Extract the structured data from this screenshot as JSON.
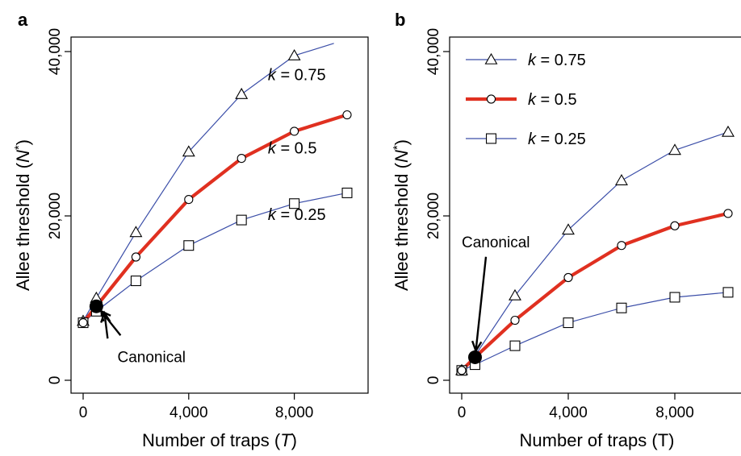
{
  "chart_data": [
    {
      "type": "line",
      "panel_label": "a",
      "xlabel": "Number of traps (",
      "xlabel_var": "T",
      "xlabel_end": ")",
      "ylabel": "Allee threshold (",
      "ylabel_var": "N",
      "ylabel_sup": "*",
      "ylabel_end": ")",
      "xlim": [
        0,
        10000
      ],
      "ylim": [
        0,
        40000
      ],
      "x_ticks": [
        0,
        4000,
        8000
      ],
      "x_tick_labels": [
        "0",
        "4,000",
        "8,000"
      ],
      "y_ticks": [
        0,
        20000,
        40000
      ],
      "y_tick_labels": [
        "0",
        "20,000",
        "40,000"
      ],
      "series": [
        {
          "name": "k = 0.75",
          "color": "#3b4ea8",
          "marker": "triangle",
          "x": [
            0,
            500,
            2000,
            4000,
            6000,
            8000,
            9500
          ],
          "y": [
            7200,
            10000,
            18000,
            27800,
            34800,
            39500,
            41000
          ],
          "marked": [
            true,
            true,
            true,
            true,
            true,
            true,
            false
          ]
        },
        {
          "name": "k = 0.5",
          "color": "#e03020",
          "marker": "circle",
          "x": [
            0,
            500,
            2000,
            4000,
            6000,
            8000,
            10000
          ],
          "y": [
            7000,
            9000,
            15000,
            22000,
            27000,
            30300,
            32300
          ],
          "marked": [
            true,
            true,
            true,
            true,
            true,
            true,
            true
          ]
        },
        {
          "name": "k = 0.25",
          "color": "#3b4ea8",
          "marker": "square",
          "x": [
            0,
            500,
            2000,
            4000,
            6000,
            8000,
            10000
          ],
          "y": [
            7000,
            8400,
            12100,
            16400,
            19500,
            21500,
            22800
          ],
          "marked": [
            true,
            true,
            true,
            true,
            true,
            true,
            true
          ]
        }
      ],
      "series_labels": [
        {
          "var": "k",
          "text": " = 0.75",
          "at_x": 7000,
          "at_y": 36500
        },
        {
          "var": "k",
          "text": " = 0.5",
          "at_x": 7000,
          "at_y": 27600
        },
        {
          "var": "k",
          "text": " = 0.25",
          "at_x": 7000,
          "at_y": 19500
        }
      ],
      "canonical": {
        "label": "Canonical",
        "x": 500,
        "y": 9000,
        "label_at_x": 1300,
        "label_at_y": 2200
      }
    },
    {
      "type": "line",
      "panel_label": "b",
      "xlabel": "Number of traps (T)",
      "ylabel": "Allee threshold (",
      "ylabel_var": "N",
      "ylabel_sup": "*",
      "ylabel_end": ")",
      "xlim": [
        0,
        10000
      ],
      "ylim": [
        0,
        40000
      ],
      "x_ticks": [
        0,
        4000,
        8000
      ],
      "x_tick_labels": [
        "0",
        "4,000",
        "8,000"
      ],
      "y_ticks": [
        0,
        20000,
        40000
      ],
      "y_tick_labels": [
        "0",
        "20,000",
        "40,000"
      ],
      "series": [
        {
          "name": "k = 0.75",
          "color": "#3b4ea8",
          "marker": "triangle",
          "x": [
            0,
            500,
            2000,
            4000,
            6000,
            8000,
            10000
          ],
          "y": [
            1200,
            3000,
            10300,
            18300,
            24300,
            28000,
            30200
          ],
          "marked": [
            true,
            true,
            true,
            true,
            true,
            true,
            true
          ]
        },
        {
          "name": "k = 0.5",
          "color": "#e03020",
          "marker": "circle",
          "x": [
            0,
            500,
            2000,
            4000,
            6000,
            8000,
            10000
          ],
          "y": [
            1200,
            2800,
            7300,
            12500,
            16400,
            18800,
            20300
          ],
          "marked": [
            true,
            true,
            true,
            true,
            true,
            true,
            true
          ]
        },
        {
          "name": "k = 0.25",
          "color": "#3b4ea8",
          "marker": "square",
          "x": [
            0,
            500,
            2000,
            4000,
            6000,
            8000,
            10000
          ],
          "y": [
            1200,
            1900,
            4200,
            7000,
            8800,
            10100,
            10700
          ],
          "marked": [
            true,
            true,
            true,
            true,
            true,
            true,
            true
          ]
        }
      ],
      "legend": [
        {
          "var": "k",
          "text": " = 0.75",
          "marker": "triangle",
          "color": "#3b4ea8",
          "thick": false
        },
        {
          "var": "k",
          "text": " = 0.5",
          "marker": "circle",
          "color": "#e03020",
          "thick": true
        },
        {
          "var": "k",
          "text": " = 0.25",
          "marker": "square",
          "color": "#3b4ea8",
          "thick": false
        }
      ],
      "legend_placement": "top-left",
      "canonical": {
        "label": "Canonical",
        "x": 500,
        "y": 2800,
        "label_at_x": 0,
        "label_at_y": 16200
      }
    }
  ]
}
